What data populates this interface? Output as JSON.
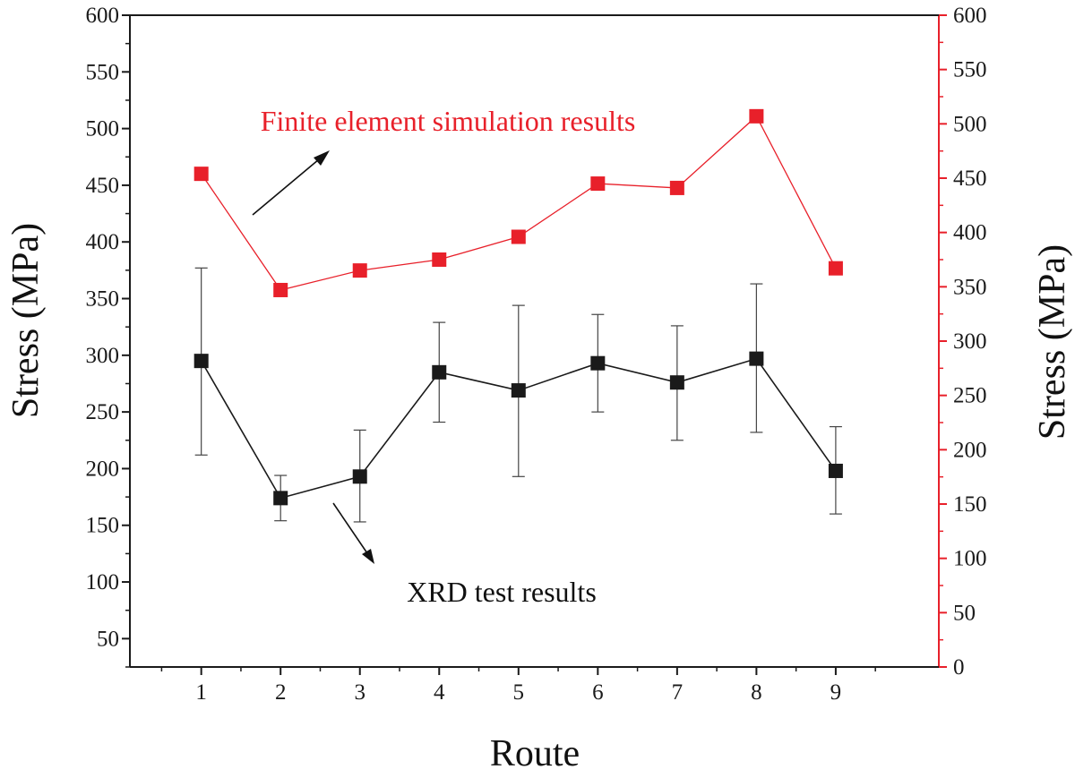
{
  "chart_data": {
    "type": "line",
    "xlabel": "Route",
    "ylabel_left": "Stress (MPa)",
    "ylabel_right": "Stress (MPa)",
    "x": [
      1,
      2,
      3,
      4,
      5,
      6,
      7,
      8,
      9
    ],
    "x_tick_labels": [
      "1",
      "2",
      "3",
      "4",
      "5",
      "6",
      "7",
      "8",
      "9"
    ],
    "x_range": [
      0.1,
      10.3
    ],
    "ylim_left": [
      25,
      600
    ],
    "ylim_right": [
      0,
      600
    ],
    "y_left_tick_labels": [
      "50",
      "100",
      "150",
      "200",
      "250",
      "300",
      "350",
      "400",
      "450",
      "500",
      "550",
      "600"
    ],
    "y_right_tick_labels": [
      "0",
      "50",
      "100",
      "150",
      "200",
      "250",
      "300",
      "350",
      "400",
      "450",
      "500",
      "550",
      "600"
    ],
    "series": [
      {
        "name": "XRD test results",
        "axis": "left",
        "color": "#1a1a1a",
        "marker": "square",
        "values": [
          295,
          174,
          193,
          285,
          269,
          293,
          276,
          297,
          198
        ],
        "err_low": [
          212,
          154,
          153,
          241,
          193,
          250,
          225,
          232,
          160
        ],
        "err_high": [
          377,
          194,
          234,
          329,
          344,
          336,
          326,
          363,
          237
        ]
      },
      {
        "name": "Finite element simulation results",
        "axis": "right",
        "color": "#e8202a",
        "marker": "square",
        "values": [
          454,
          347,
          365,
          375,
          396,
          445,
          441,
          507,
          367
        ]
      }
    ],
    "annotations": [
      {
        "text": "Finite element simulation results",
        "color": "#e8202a"
      },
      {
        "text": "XRD test results",
        "color": "#111111"
      }
    ],
    "grid": false,
    "colors": {
      "left_axis": "#1a1a1a",
      "right_axis": "#e8202a"
    }
  }
}
